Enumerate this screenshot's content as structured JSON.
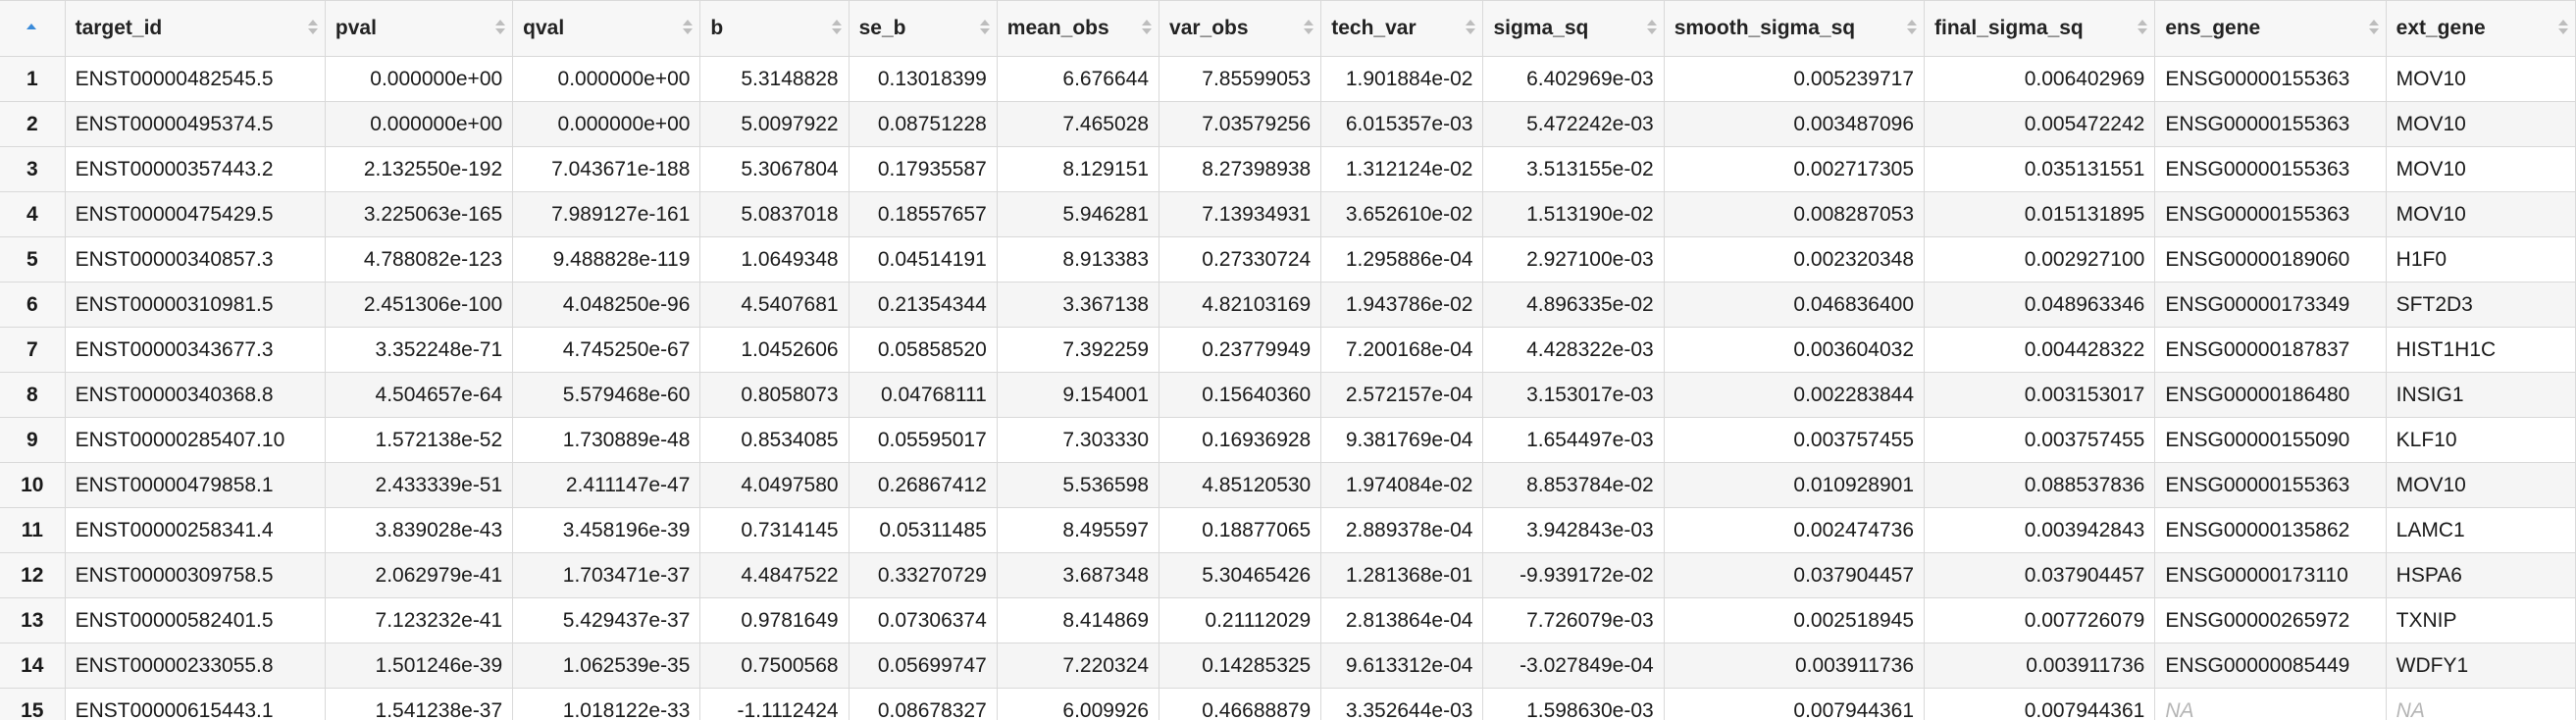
{
  "colors": {
    "header_bg": "#f7f7f7",
    "border": "#d9d9d9",
    "sort_active": "#3b8bd9",
    "sort_inactive": "#bdbdbd",
    "na_text": "#b5b5b5"
  },
  "columns": [
    {
      "key": "target_id",
      "label": "target_id",
      "align": "left"
    },
    {
      "key": "pval",
      "label": "pval",
      "align": "right"
    },
    {
      "key": "qval",
      "label": "qval",
      "align": "right"
    },
    {
      "key": "b",
      "label": "b",
      "align": "right"
    },
    {
      "key": "se_b",
      "label": "se_b",
      "align": "right"
    },
    {
      "key": "mean_obs",
      "label": "mean_obs",
      "align": "right"
    },
    {
      "key": "var_obs",
      "label": "var_obs",
      "align": "right"
    },
    {
      "key": "tech_var",
      "label": "tech_var",
      "align": "right"
    },
    {
      "key": "sigma_sq",
      "label": "sigma_sq",
      "align": "right"
    },
    {
      "key": "smooth_sigma_sq",
      "label": "smooth_sigma_sq",
      "align": "right"
    },
    {
      "key": "final_sigma_sq",
      "label": "final_sigma_sq",
      "align": "right"
    },
    {
      "key": "ens_gene",
      "label": "ens_gene",
      "align": "left"
    },
    {
      "key": "ext_gene",
      "label": "ext_gene",
      "align": "left"
    }
  ],
  "rows": [
    {
      "n": "1",
      "cells": [
        "ENST00000482545.5",
        "0.000000e+00",
        "0.000000e+00",
        "5.3148828",
        "0.13018399",
        "6.676644",
        "7.85599053",
        "1.901884e-02",
        "6.402969e-03",
        "0.005239717",
        "0.006402969",
        "ENSG00000155363",
        "MOV10"
      ]
    },
    {
      "n": "2",
      "cells": [
        "ENST00000495374.5",
        "0.000000e+00",
        "0.000000e+00",
        "5.0097922",
        "0.08751228",
        "7.465028",
        "7.03579256",
        "6.015357e-03",
        "5.472242e-03",
        "0.003487096",
        "0.005472242",
        "ENSG00000155363",
        "MOV10"
      ]
    },
    {
      "n": "3",
      "cells": [
        "ENST00000357443.2",
        "2.132550e-192",
        "7.043671e-188",
        "5.3067804",
        "0.17935587",
        "8.129151",
        "8.27398938",
        "1.312124e-02",
        "3.513155e-02",
        "0.002717305",
        "0.035131551",
        "ENSG00000155363",
        "MOV10"
      ]
    },
    {
      "n": "4",
      "cells": [
        "ENST00000475429.5",
        "3.225063e-165",
        "7.989127e-161",
        "5.0837018",
        "0.18557657",
        "5.946281",
        "7.13934931",
        "3.652610e-02",
        "1.513190e-02",
        "0.008287053",
        "0.015131895",
        "ENSG00000155363",
        "MOV10"
      ]
    },
    {
      "n": "5",
      "cells": [
        "ENST00000340857.3",
        "4.788082e-123",
        "9.488828e-119",
        "1.0649348",
        "0.04514191",
        "8.913383",
        "0.27330724",
        "1.295886e-04",
        "2.927100e-03",
        "0.002320348",
        "0.002927100",
        "ENSG00000189060",
        "H1F0"
      ]
    },
    {
      "n": "6",
      "cells": [
        "ENST00000310981.5",
        "2.451306e-100",
        "4.048250e-96",
        "4.5407681",
        "0.21354344",
        "3.367138",
        "4.82103169",
        "1.943786e-02",
        "4.896335e-02",
        "0.046836400",
        "0.048963346",
        "ENSG00000173349",
        "SFT2D3"
      ]
    },
    {
      "n": "7",
      "cells": [
        "ENST00000343677.3",
        "3.352248e-71",
        "4.745250e-67",
        "1.0452606",
        "0.05858520",
        "7.392259",
        "0.23779949",
        "7.200168e-04",
        "4.428322e-03",
        "0.003604032",
        "0.004428322",
        "ENSG00000187837",
        "HIST1H1C"
      ]
    },
    {
      "n": "8",
      "cells": [
        "ENST00000340368.8",
        "4.504657e-64",
        "5.579468e-60",
        "0.8058073",
        "0.04768111",
        "9.154001",
        "0.15640360",
        "2.572157e-04",
        "3.153017e-03",
        "0.002283844",
        "0.003153017",
        "ENSG00000186480",
        "INSIG1"
      ]
    },
    {
      "n": "9",
      "cells": [
        "ENST00000285407.10",
        "1.572138e-52",
        "1.730889e-48",
        "0.8534085",
        "0.05595017",
        "7.303330",
        "0.16936928",
        "9.381769e-04",
        "1.654497e-03",
        "0.003757455",
        "0.003757455",
        "ENSG00000155090",
        "KLF10"
      ]
    },
    {
      "n": "10",
      "cells": [
        "ENST00000479858.1",
        "2.433339e-51",
        "2.411147e-47",
        "4.0497580",
        "0.26867412",
        "5.536598",
        "4.85120530",
        "1.974084e-02",
        "8.853784e-02",
        "0.010928901",
        "0.088537836",
        "ENSG00000155363",
        "MOV10"
      ]
    },
    {
      "n": "11",
      "cells": [
        "ENST00000258341.4",
        "3.839028e-43",
        "3.458196e-39",
        "0.7314145",
        "0.05311485",
        "8.495597",
        "0.18877065",
        "2.889378e-04",
        "3.942843e-03",
        "0.002474736",
        "0.003942843",
        "ENSG00000135862",
        "LAMC1"
      ]
    },
    {
      "n": "12",
      "cells": [
        "ENST00000309758.5",
        "2.062979e-41",
        "1.703471e-37",
        "4.4847522",
        "0.33270729",
        "3.687348",
        "5.30465426",
        "1.281368e-01",
        "-9.939172e-02",
        "0.037904457",
        "0.037904457",
        "ENSG00000173110",
        "HSPA6"
      ]
    },
    {
      "n": "13",
      "cells": [
        "ENST00000582401.5",
        "7.123232e-41",
        "5.429437e-37",
        "0.9781649",
        "0.07306374",
        "8.414869",
        "0.21112029",
        "2.813864e-04",
        "7.726079e-03",
        "0.002518945",
        "0.007726079",
        "ENSG00000265972",
        "TXNIP"
      ]
    },
    {
      "n": "14",
      "cells": [
        "ENST00000233055.8",
        "1.501246e-39",
        "1.062539e-35",
        "0.7500568",
        "0.05699747",
        "7.220324",
        "0.14285325",
        "9.613312e-04",
        "-3.027849e-04",
        "0.003911736",
        "0.003911736",
        "ENSG00000085449",
        "WDFY1"
      ]
    },
    {
      "n": "15",
      "cells": [
        "ENST00000615443.1",
        "1.541238e-37",
        "1.018122e-33",
        "-1.1112424",
        "0.08678327",
        "6.009926",
        "0.46688879",
        "3.352644e-03",
        "1.598630e-03",
        "0.007944361",
        "0.007944361",
        "NA",
        "NA"
      ]
    }
  ]
}
